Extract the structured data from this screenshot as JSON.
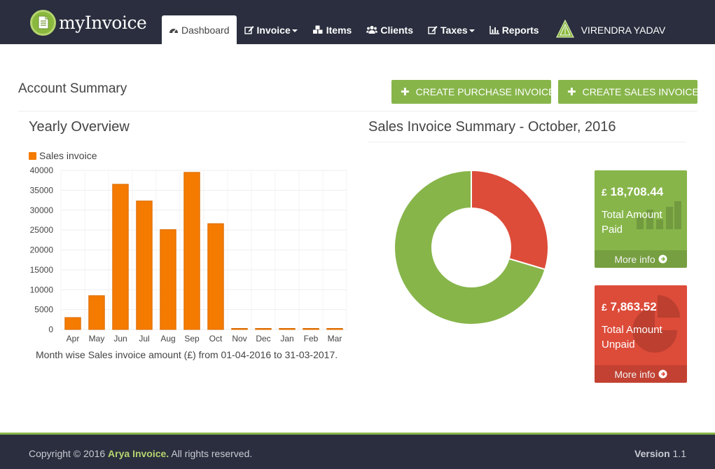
{
  "app": {
    "brand": "myInvoice"
  },
  "nav": {
    "items": [
      {
        "label": "Dashboard",
        "icon": "dashboard-icon",
        "active": true,
        "dropdown": false
      },
      {
        "label": "Invoice",
        "icon": "edit-icon",
        "active": false,
        "dropdown": true
      },
      {
        "label": "Items",
        "icon": "cubes-icon",
        "active": false,
        "dropdown": false
      },
      {
        "label": "Clients",
        "icon": "users-icon",
        "active": false,
        "dropdown": false
      },
      {
        "label": "Taxes",
        "icon": "edit-icon",
        "active": false,
        "dropdown": true
      },
      {
        "label": "Reports",
        "icon": "bar-chart-icon",
        "active": false,
        "dropdown": false
      }
    ],
    "user_name": "VIRENDRA YADAV"
  },
  "header": {
    "title": "Account Summary",
    "create_purchase_label": "CREATE PURCHASE INVOICE",
    "create_sales_label": "CREATE SALES INVOICE"
  },
  "yearly": {
    "title": "Yearly Overview",
    "caption": "Month wise Sales invoice amount (£) from 01-04-2016 to 31-03-2017."
  },
  "summary": {
    "title": "Sales Invoice Summary - October, 2016",
    "paid": {
      "currency": "£",
      "amount": "18,708.44",
      "label": "Total Amount Paid",
      "more": "More info"
    },
    "unpaid": {
      "currency": "£",
      "amount": "7,863.52",
      "label": "Total Amount Unpaid",
      "more": "More info"
    }
  },
  "colors": {
    "accent_green": "#87b54a",
    "bar_orange": "#f57b00",
    "unpaid_red": "#dd4b39",
    "navbar_dark": "#2a2e3e"
  },
  "chart_data": [
    {
      "type": "bar",
      "title": "",
      "xlabel": "",
      "ylabel": "",
      "legend": [
        "Sales invoice"
      ],
      "categories": [
        "Apr",
        "May",
        "Jun",
        "Jul",
        "Aug",
        "Sep",
        "Oct",
        "Nov",
        "Dec",
        "Jan",
        "Feb",
        "Mar"
      ],
      "series": [
        {
          "name": "Sales invoice",
          "values": [
            3000,
            8500,
            36500,
            32300,
            25100,
            39500,
            26600,
            0,
            0,
            0,
            0,
            0
          ]
        }
      ],
      "ylim": [
        0,
        40000
      ],
      "yticks": [
        0,
        5000,
        10000,
        15000,
        20000,
        25000,
        30000,
        35000,
        40000
      ],
      "grid": true
    },
    {
      "type": "pie",
      "title": "Sales Invoice Summary - October, 2016",
      "slices": [
        {
          "label": "Total Amount Unpaid",
          "value": 7863.52,
          "color": "#dd4b39"
        },
        {
          "label": "Total Amount Paid",
          "value": 18708.44,
          "color": "#87b54a"
        }
      ]
    }
  ],
  "footer": {
    "copyright_prefix": "Copyright © 2016 ",
    "company": "Arya Invoice.",
    "rights": " All rights reserved.",
    "version_label": "Version",
    "version_number": "1.1"
  }
}
